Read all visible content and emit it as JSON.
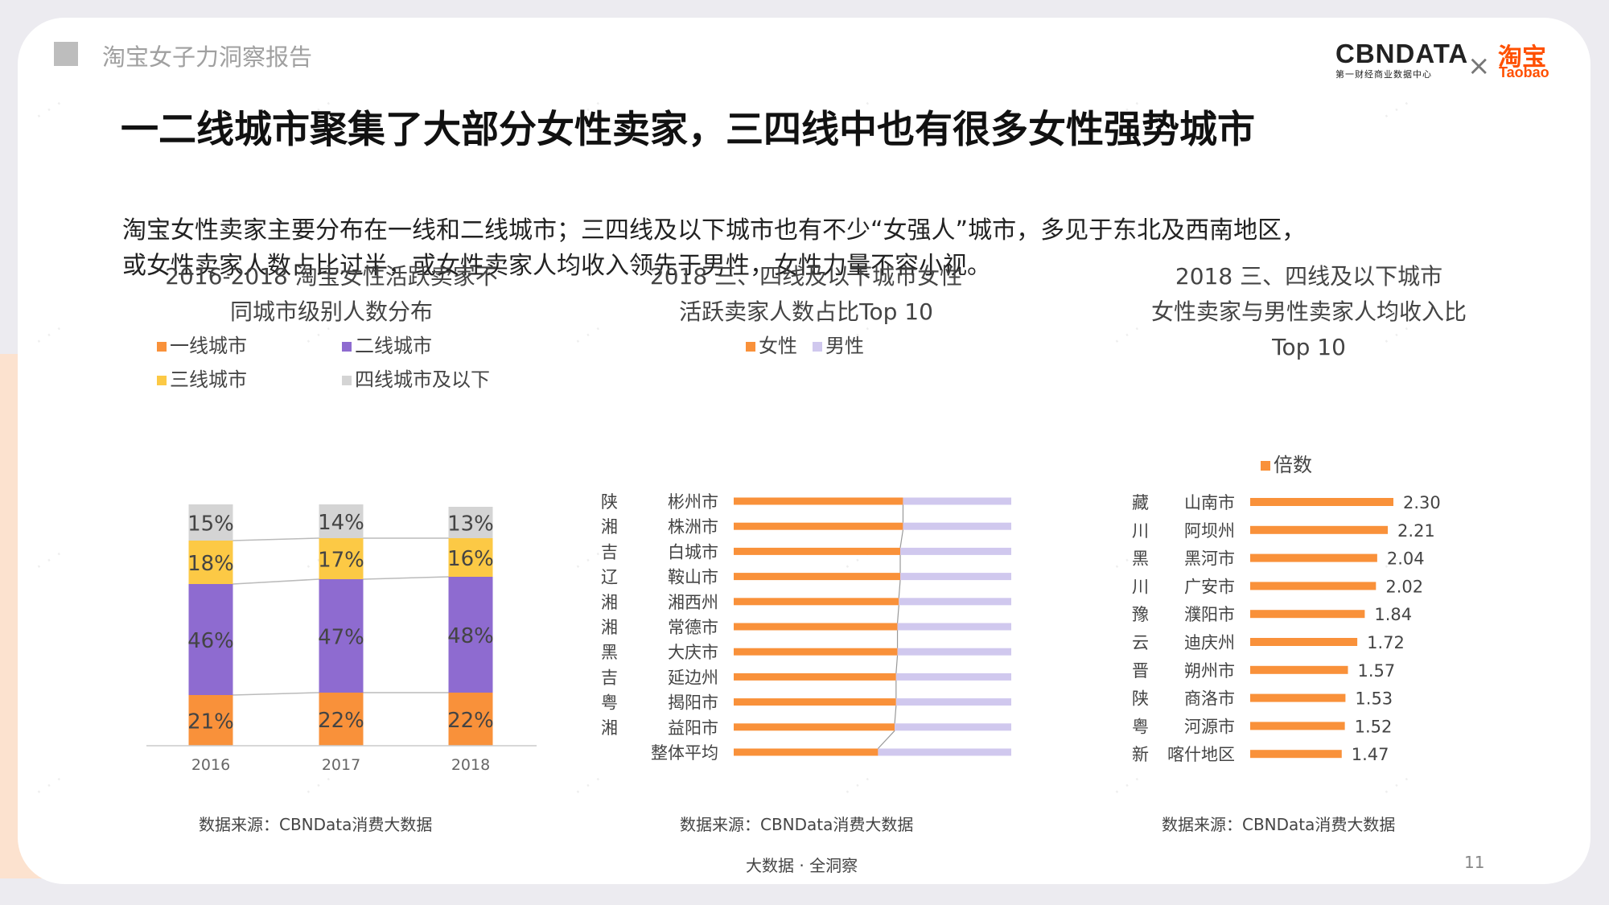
{
  "header": {
    "report_name": "淘宝女子力洞察报告"
  },
  "logo": {
    "cbn": "CBNDATA",
    "cbn_sub": "第一财经商业数据中心",
    "cross": "×",
    "taobao_cn": "淘宝",
    "taobao_en": "Taobao"
  },
  "title": "一二线城市聚集了大部分女性卖家，三四线中也有很多女性强势城市",
  "intro": {
    "line1": "淘宝女性卖家主要分布在一线和二线城市；三四线及以下城市也有不少“女强人”城市，多见于东北及西南地区，",
    "line2": "或女性卖家人数占比过半，或女性卖家人均收入领先于男性，女性力量不容小视。"
  },
  "colors": {
    "orange": "#f9913a",
    "purple": "#8e6bd0",
    "yellow": "#fcc945",
    "gray": "#d4d4d4",
    "lavender": "#d0c8ee"
  },
  "chart1": {
    "title1": "2016-2018 淘宝女性活跃卖家不",
    "title2": "同城市级别人数分布",
    "source": "数据来源：CBNData消费大数据"
  },
  "chart2": {
    "title1": "2018 三、四线及以下城市女性",
    "title2": "活跃卖家人数占比Top 10",
    "source": "数据来源：CBNData消费大数据"
  },
  "chart3": {
    "title1": "2018 三、四线及以下城市",
    "title2": "女性卖家与男性卖家人均收入比",
    "title3": "Top 10",
    "source": "数据来源：CBNData消费大数据"
  },
  "chart_data": [
    {
      "type": "bar",
      "stacked": true,
      "orientation": "vertical",
      "title": "2016-2018 淘宝女性活跃卖家不同城市级别人数分布",
      "categories": [
        "2016",
        "2017",
        "2018"
      ],
      "series": [
        {
          "name": "一线城市",
          "values": [
            21,
            22,
            22
          ],
          "labels": [
            "21%",
            "22%",
            "22%"
          ]
        },
        {
          "name": "二线城市",
          "values": [
            46,
            47,
            48
          ],
          "labels": [
            "46%",
            "47%",
            "48%"
          ]
        },
        {
          "name": "三线城市",
          "values": [
            18,
            17,
            16
          ],
          "labels": [
            "18%",
            "17%",
            "16%"
          ]
        },
        {
          "name": "四线城市及以下",
          "values": [
            15,
            14,
            13
          ],
          "labels": [
            "15%",
            "14%",
            "13%"
          ]
        }
      ],
      "ylim": [
        0,
        100
      ]
    },
    {
      "type": "bar",
      "stacked": true,
      "orientation": "horizontal",
      "title": "2018 三、四线及以下城市女性活跃卖家人数占比Top 10",
      "categories": [
        {
          "province": "陕",
          "city": "彬州市"
        },
        {
          "province": "湘",
          "city": "株洲市"
        },
        {
          "province": "吉",
          "city": "白城市"
        },
        {
          "province": "辽",
          "city": "鞍山市"
        },
        {
          "province": "湘",
          "city": "湘西州"
        },
        {
          "province": "湘",
          "city": "常德市"
        },
        {
          "province": "黑",
          "city": "大庆市"
        },
        {
          "province": "吉",
          "city": "延边州"
        },
        {
          "province": "粤",
          "city": "揭阳市"
        },
        {
          "province": "湘",
          "city": "益阳市"
        },
        {
          "province": "",
          "city": "整体平均"
        }
      ],
      "series": [
        {
          "name": "女性",
          "values": [
            61,
            61,
            60,
            60,
            59.5,
            59,
            59,
            58.5,
            58.5,
            58,
            52
          ]
        },
        {
          "name": "男性",
          "values": [
            39,
            39,
            40,
            40,
            40.5,
            41,
            41,
            41.5,
            41.5,
            42,
            48
          ]
        }
      ],
      "xlim": [
        0,
        100
      ]
    },
    {
      "type": "bar",
      "orientation": "horizontal",
      "title": "2018 三、四线及以下城市女性卖家与男性卖家人均收入比Top 10",
      "categories": [
        {
          "province": "藏",
          "city": "山南市"
        },
        {
          "province": "川",
          "city": "阿坝州"
        },
        {
          "province": "黑",
          "city": "黑河市"
        },
        {
          "province": "川",
          "city": "广安市"
        },
        {
          "province": "豫",
          "city": "濮阳市"
        },
        {
          "province": "云",
          "city": "迪庆州"
        },
        {
          "province": "晋",
          "city": "朔州市"
        },
        {
          "province": "陕",
          "city": "商洛市"
        },
        {
          "province": "粤",
          "city": "河源市"
        },
        {
          "province": "新",
          "city": "喀什地区"
        }
      ],
      "series": [
        {
          "name": "倍数",
          "values": [
            2.3,
            2.21,
            2.04,
            2.02,
            1.84,
            1.72,
            1.57,
            1.53,
            1.52,
            1.47
          ],
          "labels": [
            "2.30",
            "2.21",
            "2.04",
            "2.02",
            "1.84",
            "1.72",
            "1.57",
            "1.53",
            "1.52",
            "1.47"
          ]
        }
      ],
      "xlim": [
        0,
        2.3
      ]
    }
  ],
  "footer": {
    "slogan": "大数据 · 全洞察",
    "page": "11"
  }
}
